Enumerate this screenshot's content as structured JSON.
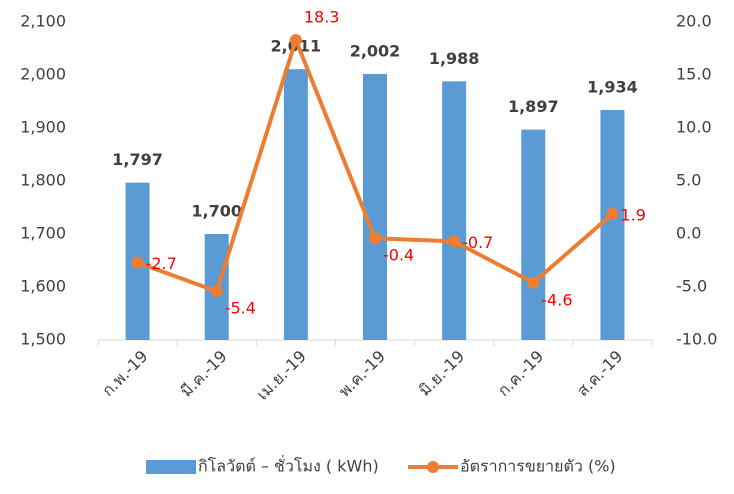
{
  "chart_data": {
    "type": "bar_line",
    "categories": [
      "ก.พ.-19",
      "มี.ค.-19",
      "เม.ย.-19",
      "พ.ค.-19",
      "มิ.ย.-19",
      "ก.ค.-19",
      "ส.ค.-19"
    ],
    "series": [
      {
        "name": "กิโลวัตต์ – ชั่วโมง ( kWh)",
        "color": "#5b9bd5",
        "type": "bar",
        "axis": "y",
        "values": [
          1797,
          1700,
          2011,
          2002,
          1988,
          1897,
          1934
        ],
        "value_labels": [
          "1,797",
          "1,700",
          "2,011",
          "2,002",
          "1,988",
          "1,897",
          "1,934"
        ]
      },
      {
        "name": "อัตราการขยายตัว (%)",
        "color": "#ed7d31",
        "type": "line",
        "axis": "y2",
        "values": [
          -2.7,
          -5.4,
          18.3,
          -0.4,
          -0.7,
          -4.6,
          1.9
        ]
      }
    ],
    "ylim": [
      1500,
      2100
    ],
    "yticks": [
      {
        "value": 1500,
        "label": "1,500"
      },
      {
        "value": 1600,
        "label": "1,600"
      },
      {
        "value": 1700,
        "label": "1,700"
      },
      {
        "value": 1800,
        "label": "1,800"
      },
      {
        "value": 1900,
        "label": "1,900"
      },
      {
        "value": 2000,
        "label": "2,000"
      },
      {
        "value": 2100,
        "label": "2,100"
      }
    ],
    "y2lim": [
      -10,
      20
    ],
    "y2ticks": [
      {
        "value": -10,
        "label": "-10.0"
      },
      {
        "value": -5,
        "label": "-5.0"
      },
      {
        "value": 0,
        "label": "0.0"
      },
      {
        "value": 5,
        "label": "5.0"
      },
      {
        "value": 10,
        "label": "10.0"
      },
      {
        "value": 15,
        "label": "15.0"
      },
      {
        "value": 20,
        "label": "20.0"
      }
    ],
    "legend": "bottom"
  }
}
